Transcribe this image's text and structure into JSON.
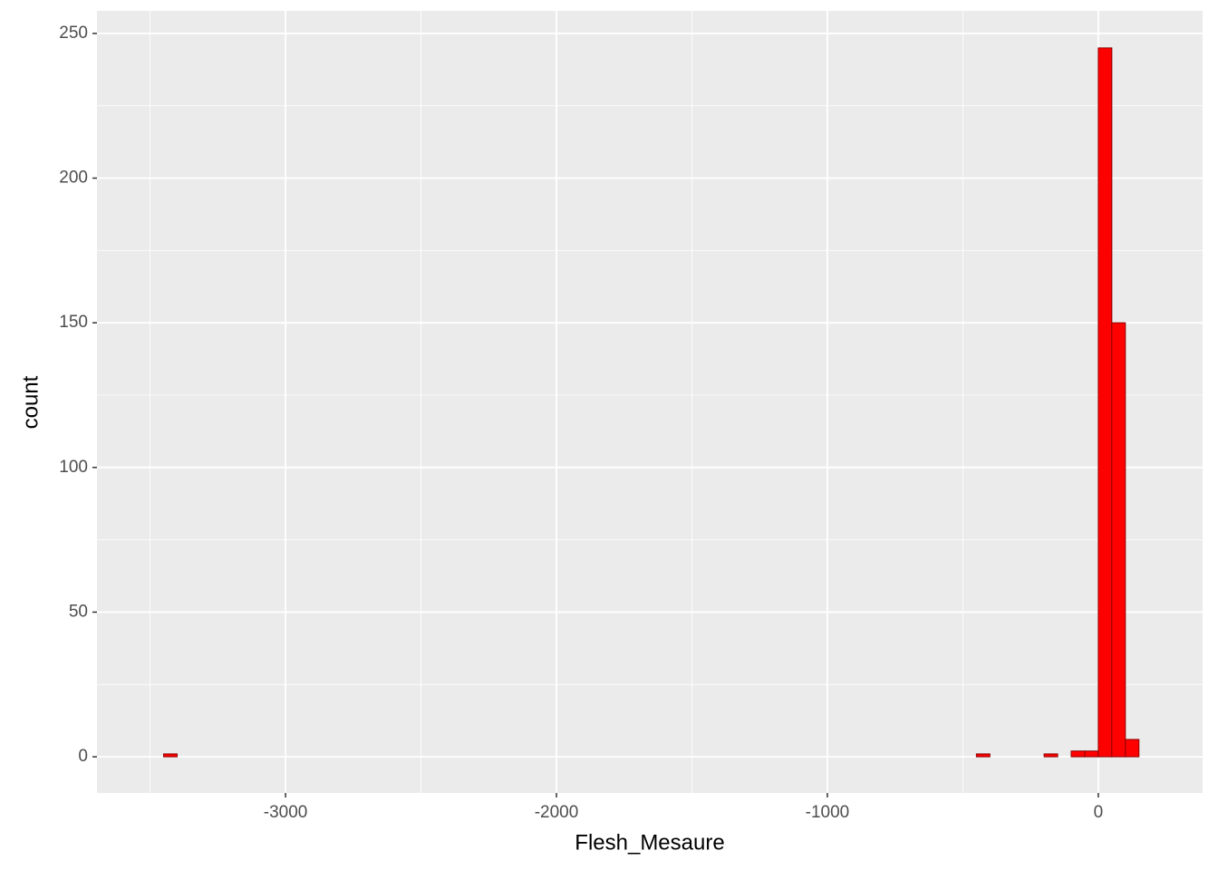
{
  "chart_data": {
    "type": "histogram",
    "x_label": "Flesh_Mesaure",
    "y_label": "count",
    "bins": [
      -3500,
      -3450,
      -3400,
      -3350,
      -3300,
      -3250,
      -3200,
      -3150,
      -3100,
      -3050,
      -3000,
      -2950,
      -2900,
      -2850,
      -2800,
      -2750,
      -2700,
      -2650,
      -2600,
      -2550,
      -2500,
      -2450,
      -2400,
      -2350,
      -2300,
      -2250,
      -2200,
      -2150,
      -2100,
      -2050,
      -2000,
      -1950,
      -1900,
      -1850,
      -1800,
      -1750,
      -1700,
      -1650,
      -1600,
      -1550,
      -1500,
      -1450,
      -1400,
      -1350,
      -1300,
      -1250,
      -1200,
      -1150,
      -1100,
      -1050,
      -1000,
      -950,
      -900,
      -850,
      -800,
      -750,
      -700,
      -650,
      -600,
      -550,
      -500,
      -450,
      -400,
      -350,
      -300,
      -250,
      -200,
      -150,
      -100,
      -50,
      0,
      50,
      100,
      150,
      200
    ],
    "values": [
      0,
      1,
      0,
      0,
      0,
      0,
      0,
      0,
      0,
      0,
      0,
      0,
      0,
      0,
      0,
      0,
      0,
      0,
      0,
      0,
      0,
      0,
      0,
      0,
      0,
      0,
      0,
      0,
      0,
      0,
      0,
      0,
      0,
      0,
      0,
      0,
      0,
      0,
      0,
      0,
      0,
      0,
      0,
      0,
      0,
      0,
      0,
      0,
      0,
      0,
      0,
      0,
      0,
      0,
      0,
      0,
      0,
      0,
      0,
      0,
      0,
      1,
      0,
      0,
      0,
      0,
      1,
      0,
      2,
      2,
      245,
      150,
      6,
      0
    ],
    "color": "#FF0000",
    "edge_color": "#8B0000",
    "xlim": [
      -3696,
      385
    ],
    "ylim": [
      -12.5,
      257.8
    ],
    "xticks": [
      -3000,
      -2000,
      -1000,
      0
    ],
    "yticks": [
      0,
      50,
      100,
      150,
      200,
      250
    ],
    "grid": true
  }
}
